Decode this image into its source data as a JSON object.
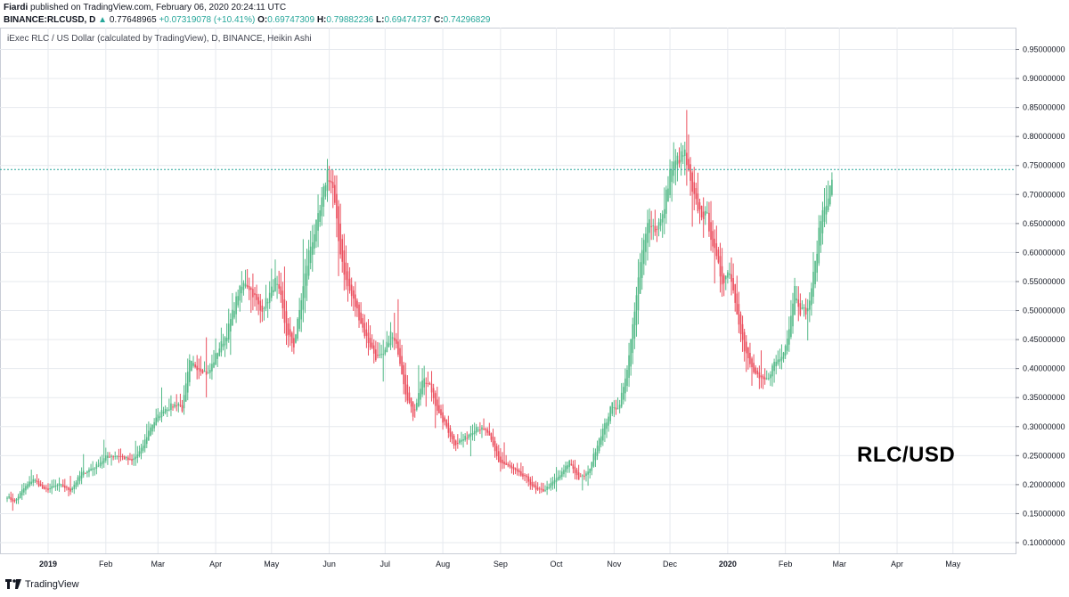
{
  "header": {
    "author": "Fiardi",
    "published_text": "published on TradingView.com, February 06, 2020 20:24:11 UTC",
    "symbol": "BINANCE:RLCUSD, D",
    "last": "0.77648965",
    "change": "+0.07319078 (+10.41%)",
    "open_label": "O:",
    "open": "0.69747309",
    "high_label": "H:",
    "high": "0.79882236",
    "low_label": "L:",
    "low": "0.69474737",
    "close_label": "C:",
    "close": "0.74296829"
  },
  "footer": {
    "brand": "TradingView"
  },
  "colors": {
    "up": "#53b987",
    "down": "#eb4d5c",
    "grid": "#e6e9ee",
    "price_line": "#26a69a"
  },
  "chart_data": {
    "type": "candlestick-heikin-ashi",
    "title": "iExec RLC / US Dollar (calculated by TradingView), D, BINANCE, Heikin Ashi",
    "watermark": "RLC/USD",
    "ylim": [
      0.1,
      0.96
    ],
    "y_ticks": [
      "0.95000000",
      "0.90000000",
      "0.85000000",
      "0.80000000",
      "0.75000000",
      "0.70000000",
      "0.65000000",
      "0.60000000",
      "0.55000000",
      "0.50000000",
      "0.45000000",
      "0.40000000",
      "0.35000000",
      "0.30000000",
      "0.25000000",
      "0.20000000",
      "0.15000000",
      "0.10000000"
    ],
    "x_ticks": [
      "2019",
      "Feb",
      "Mar",
      "Apr",
      "May",
      "Jun",
      "Jul",
      "Aug",
      "Sep",
      "Oct",
      "Nov",
      "Dec",
      "2020",
      "Feb",
      "Mar",
      "Apr",
      "May"
    ],
    "x_tick_day_offsets": [
      0,
      31,
      59,
      90,
      120,
      151,
      181,
      212,
      243,
      273,
      304,
      334,
      365,
      396,
      425,
      456,
      486
    ],
    "price_line": 0.743,
    "close_keypoints": [
      [
        -22,
        0.18
      ],
      [
        -18,
        0.17
      ],
      [
        -14,
        0.19
      ],
      [
        -8,
        0.21
      ],
      [
        -2,
        0.19
      ],
      [
        6,
        0.2
      ],
      [
        12,
        0.19
      ],
      [
        18,
        0.22
      ],
      [
        25,
        0.23
      ],
      [
        32,
        0.25
      ],
      [
        38,
        0.25
      ],
      [
        45,
        0.24
      ],
      [
        50,
        0.26
      ],
      [
        55,
        0.3
      ],
      [
        62,
        0.33
      ],
      [
        70,
        0.34
      ],
      [
        72,
        0.33
      ],
      [
        76,
        0.41
      ],
      [
        82,
        0.4
      ],
      [
        86,
        0.39
      ],
      [
        91,
        0.43
      ],
      [
        96,
        0.46
      ],
      [
        102,
        0.53
      ],
      [
        106,
        0.55
      ],
      [
        110,
        0.53
      ],
      [
        114,
        0.5
      ],
      [
        118,
        0.52
      ],
      [
        122,
        0.55
      ],
      [
        125,
        0.52
      ],
      [
        128,
        0.46
      ],
      [
        132,
        0.44
      ],
      [
        136,
        0.52
      ],
      [
        140,
        0.6
      ],
      [
        146,
        0.67
      ],
      [
        150,
        0.74
      ],
      [
        153,
        0.71
      ],
      [
        156,
        0.62
      ],
      [
        160,
        0.55
      ],
      [
        166,
        0.5
      ],
      [
        170,
        0.46
      ],
      [
        176,
        0.42
      ],
      [
        180,
        0.42
      ],
      [
        184,
        0.46
      ],
      [
        188,
        0.43
      ],
      [
        192,
        0.36
      ],
      [
        196,
        0.32
      ],
      [
        201,
        0.38
      ],
      [
        205,
        0.37
      ],
      [
        210,
        0.32
      ],
      [
        214,
        0.3
      ],
      [
        218,
        0.27
      ],
      [
        224,
        0.28
      ],
      [
        230,
        0.3
      ],
      [
        236,
        0.29
      ],
      [
        242,
        0.24
      ],
      [
        248,
        0.23
      ],
      [
        252,
        0.22
      ],
      [
        257,
        0.21
      ],
      [
        262,
        0.19
      ],
      [
        266,
        0.19
      ],
      [
        270,
        0.2
      ],
      [
        276,
        0.22
      ],
      [
        280,
        0.24
      ],
      [
        285,
        0.21
      ],
      [
        290,
        0.22
      ],
      [
        296,
        0.28
      ],
      [
        300,
        0.31
      ],
      [
        303,
        0.34
      ],
      [
        306,
        0.33
      ],
      [
        310,
        0.38
      ],
      [
        314,
        0.47
      ],
      [
        318,
        0.58
      ],
      [
        322,
        0.66
      ],
      [
        326,
        0.64
      ],
      [
        330,
        0.66
      ],
      [
        334,
        0.74
      ],
      [
        338,
        0.76
      ],
      [
        342,
        0.77
      ],
      [
        346,
        0.7
      ],
      [
        350,
        0.67
      ],
      [
        354,
        0.66
      ],
      [
        358,
        0.6
      ],
      [
        362,
        0.55
      ],
      [
        366,
        0.57
      ],
      [
        370,
        0.5
      ],
      [
        374,
        0.43
      ],
      [
        378,
        0.4
      ],
      [
        382,
        0.38
      ],
      [
        386,
        0.38
      ],
      [
        390,
        0.41
      ],
      [
        394,
        0.42
      ],
      [
        398,
        0.47
      ],
      [
        401,
        0.54
      ],
      [
        404,
        0.5
      ],
      [
        408,
        0.5
      ],
      [
        412,
        0.58
      ],
      [
        415,
        0.66
      ],
      [
        418,
        0.69
      ],
      [
        421,
        0.72
      ]
    ]
  }
}
